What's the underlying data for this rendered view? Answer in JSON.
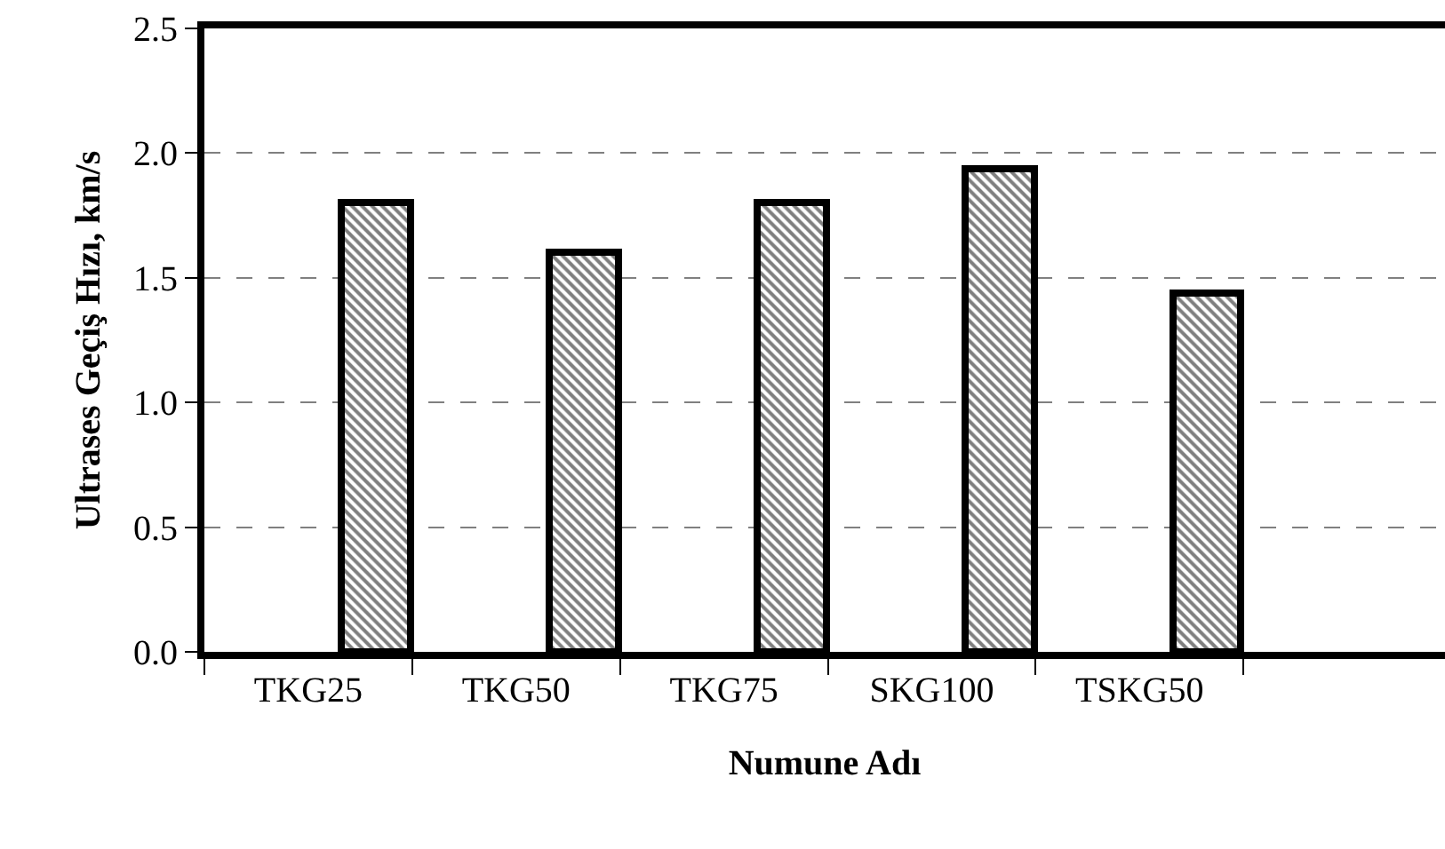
{
  "chart_data": {
    "type": "bar",
    "xlabel": "Numune Adı",
    "ylabel": "Ultrases Geçiş Hızı, km/s",
    "categories": [
      "TKG25",
      "TKG50",
      "TKG75",
      "SKG100",
      "TSKG50"
    ],
    "series": [
      {
        "color": "#000000",
        "values": [
          1.8,
          1.6,
          1.8,
          1.94,
          1.44
        ]
      }
    ],
    "ylim": [
      0,
      2.5
    ],
    "yticks": [
      {
        "value": 0,
        "label": "0.0"
      },
      {
        "value": 0.5,
        "label": "0.5"
      },
      {
        "value": 1,
        "label": "1.0"
      },
      {
        "value": 1.5,
        "label": "1.5"
      },
      {
        "value": 2,
        "label": "2.0"
      },
      {
        "value": 2.5,
        "label": "2.5"
      }
    ],
    "grid": "y"
  }
}
